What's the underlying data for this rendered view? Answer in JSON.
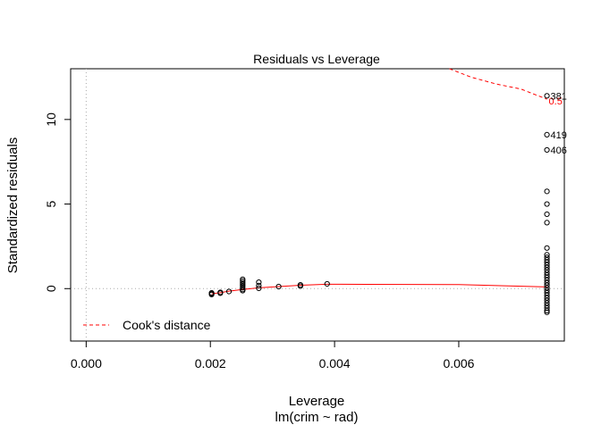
{
  "chart_data": {
    "type": "scatter",
    "title": "Residuals vs Leverage",
    "xlabel": "Leverage",
    "sublabel": "lm(crim ~ rad)",
    "ylabel": "Standardized residuals",
    "xlim": [
      -0.00025,
      0.0077
    ],
    "ylim": [
      -3.1,
      13.0
    ],
    "x_ticks": [
      0.0,
      0.002,
      0.004,
      0.006
    ],
    "x_tick_labels": [
      "0.000",
      "0.002",
      "0.004",
      "0.006"
    ],
    "y_ticks": [
      0,
      5,
      10
    ],
    "y_tick_labels": [
      "0",
      "5",
      "10"
    ],
    "points": [
      {
        "x": 0.00202,
        "y": -0.35
      },
      {
        "x": 0.00202,
        "y": -0.3
      },
      {
        "x": 0.00202,
        "y": -0.25
      },
      {
        "x": 0.00216,
        "y": -0.27
      },
      {
        "x": 0.00216,
        "y": -0.22
      },
      {
        "x": 0.0023,
        "y": -0.17
      },
      {
        "x": 0.00252,
        "y": 0.55
      },
      {
        "x": 0.00252,
        "y": 0.45
      },
      {
        "x": 0.00252,
        "y": 0.35
      },
      {
        "x": 0.00252,
        "y": 0.25
      },
      {
        "x": 0.00252,
        "y": 0.15
      },
      {
        "x": 0.00252,
        "y": 0.05
      },
      {
        "x": 0.00252,
        "y": -0.05
      },
      {
        "x": 0.00252,
        "y": -0.12
      },
      {
        "x": 0.00278,
        "y": 0.38
      },
      {
        "x": 0.00278,
        "y": 0.18
      },
      {
        "x": 0.00278,
        "y": 0.02
      },
      {
        "x": 0.0031,
        "y": 0.12
      },
      {
        "x": 0.00345,
        "y": 0.22
      },
      {
        "x": 0.00345,
        "y": 0.15
      },
      {
        "x": 0.00388,
        "y": 0.28
      },
      {
        "x": 0.00742,
        "y": 11.4
      },
      {
        "x": 0.00742,
        "y": 9.1
      },
      {
        "x": 0.00742,
        "y": 8.2
      },
      {
        "x": 0.00742,
        "y": 5.75
      },
      {
        "x": 0.00742,
        "y": 5.0
      },
      {
        "x": 0.00742,
        "y": 4.4
      },
      {
        "x": 0.00742,
        "y": 3.9
      },
      {
        "x": 0.00742,
        "y": 2.4
      },
      {
        "x": 0.00742,
        "y": 2.0
      },
      {
        "x": 0.00742,
        "y": 1.85
      },
      {
        "x": 0.00742,
        "y": 1.7
      },
      {
        "x": 0.00742,
        "y": 1.55
      },
      {
        "x": 0.00742,
        "y": 1.4
      },
      {
        "x": 0.00742,
        "y": 1.25
      },
      {
        "x": 0.00742,
        "y": 1.1
      },
      {
        "x": 0.00742,
        "y": 0.95
      },
      {
        "x": 0.00742,
        "y": 0.8
      },
      {
        "x": 0.00742,
        "y": 0.65
      },
      {
        "x": 0.00742,
        "y": 0.5
      },
      {
        "x": 0.00742,
        "y": 0.35
      },
      {
        "x": 0.00742,
        "y": 0.2
      },
      {
        "x": 0.00742,
        "y": 0.05
      },
      {
        "x": 0.00742,
        "y": -0.1
      },
      {
        "x": 0.00742,
        "y": -0.25
      },
      {
        "x": 0.00742,
        "y": -0.4
      },
      {
        "x": 0.00742,
        "y": -0.55
      },
      {
        "x": 0.00742,
        "y": -0.7
      },
      {
        "x": 0.00742,
        "y": -0.85
      },
      {
        "x": 0.00742,
        "y": -1.0
      },
      {
        "x": 0.00742,
        "y": -1.15
      },
      {
        "x": 0.00742,
        "y": -1.3
      },
      {
        "x": 0.00742,
        "y": -1.4
      }
    ],
    "point_labels": [
      {
        "x": 0.00742,
        "y": 11.4,
        "label": "381"
      },
      {
        "x": 0.00742,
        "y": 9.1,
        "label": "419"
      },
      {
        "x": 0.00742,
        "y": 8.2,
        "label": "406"
      }
    ],
    "smoother": {
      "color": "#ff0000",
      "x": [
        0.00202,
        0.00216,
        0.0023,
        0.00252,
        0.00278,
        0.0031,
        0.00345,
        0.00388,
        0.0045,
        0.006,
        0.00742
      ],
      "y": [
        -0.3,
        -0.24,
        -0.15,
        -0.05,
        0.05,
        0.12,
        0.2,
        0.26,
        0.25,
        0.24,
        0.1
      ]
    },
    "cooks_contour": {
      "color": "#ff0000",
      "level_label": "0.5",
      "x": [
        0.00585,
        0.0062,
        0.0066,
        0.007,
        0.00742
      ],
      "y": [
        13.0,
        12.5,
        12.1,
        11.8,
        11.2
      ]
    },
    "reference_lines": {
      "h": 0,
      "v": 0,
      "color": "#aaaaaa",
      "style": "dotted"
    },
    "legend": {
      "placement": "bottom-left",
      "entries": [
        {
          "label": "Cook's distance",
          "color": "#ff0000",
          "style": "dashed"
        }
      ]
    },
    "grid": false
  }
}
